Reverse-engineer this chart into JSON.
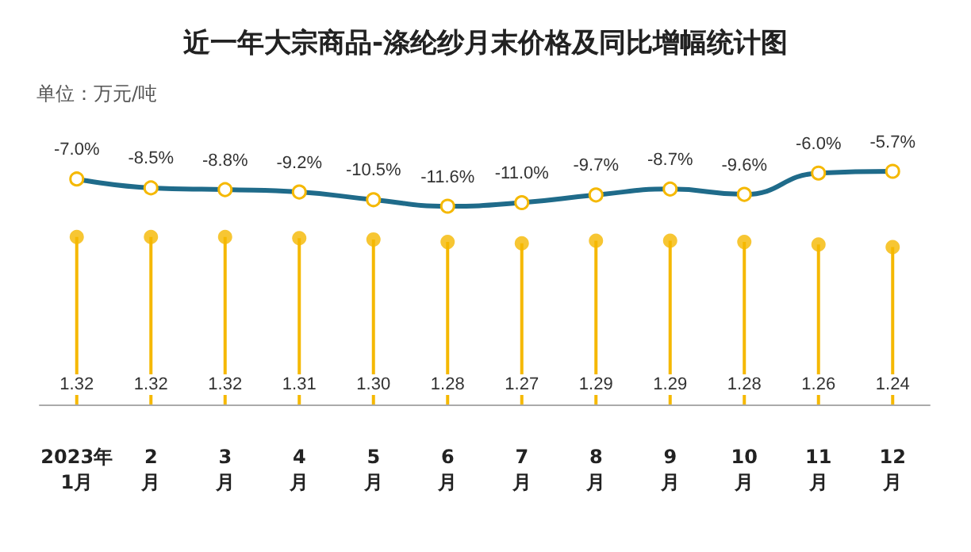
{
  "chart_data": [
    {
      "type": "line",
      "title": "近一年大宗商品-涤纶纱月末价格及同比增幅统计图",
      "subtitle": "单位：万元/吨",
      "categories": [
        null,
        null,
        null,
        null,
        null,
        null,
        null,
        null,
        null,
        null,
        null,
        null
      ],
      "series": [
        {
          "color": "#1f6b8a",
          "values": [
            -7.0,
            -8.5,
            -8.8,
            -9.2,
            -10.5,
            -11.6,
            -11.0,
            -9.7,
            -8.7,
            -9.6,
            -6.0,
            -5.7
          ],
          "value_labels": [
            "-7.0%",
            "-8.5%",
            "-8.8%",
            "-9.2%",
            "-10.5%",
            "-11.6%",
            "-11.0%",
            "-9.7%",
            "-8.7%",
            "-9.6%",
            "-6.0%",
            "-5.7%"
          ]
        }
      ],
      "marker": "circle",
      "line_style": "solid",
      "tick_labels": false
    },
    {
      "type": "lollipop",
      "categories": [
        "2023年\n1月",
        "2\n月",
        "3\n月",
        "4\n月",
        "5\n月",
        "6\n月",
        "7\n月",
        "8\n月",
        "9\n月",
        "10\n月",
        "11\n月",
        "12\n月"
      ],
      "series": [
        {
          "color": "#f5b800",
          "values": [
            1.32,
            1.32,
            1.32,
            1.31,
            1.3,
            1.28,
            1.27,
            1.29,
            1.29,
            1.28,
            1.26,
            1.24
          ],
          "value_labels": [
            "1.32",
            "1.32",
            "1.32",
            "1.31",
            "1.30",
            "1.28",
            "1.27",
            "1.29",
            "1.29",
            "1.28",
            "1.26",
            "1.24"
          ]
        }
      ],
      "tick_labels": "x"
    }
  ]
}
